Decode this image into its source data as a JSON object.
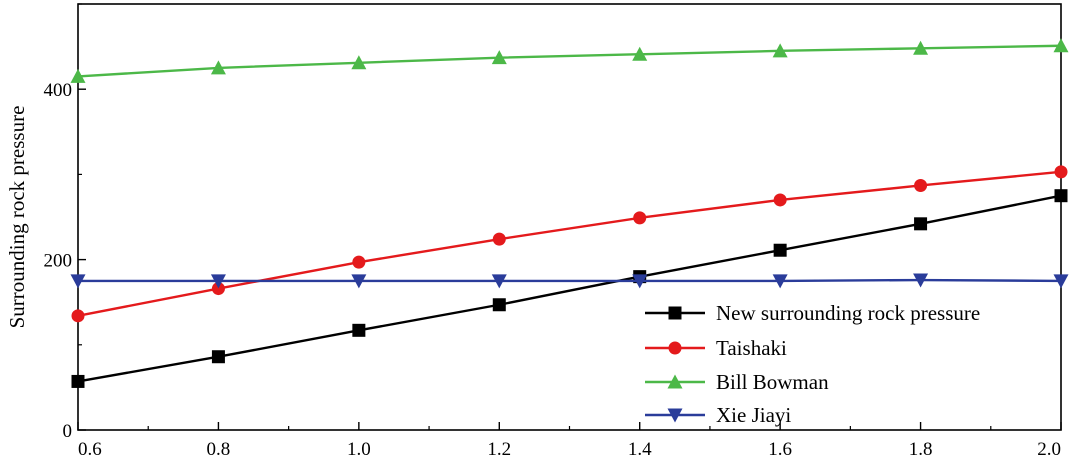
{
  "colors": {
    "series_1": "#000000",
    "series_2": "#e41a1c",
    "series_3": "#4cb848",
    "series_4": "#2a3c9a"
  },
  "chart_data": {
    "type": "line",
    "title": "",
    "xlabel": "",
    "ylabel": "Surrounding rock pressure",
    "xlim": [
      0.6,
      2.0
    ],
    "ylim": [
      0,
      500
    ],
    "x_ticks": [
      "0.6",
      "0.8",
      "1.0",
      "1.2",
      "1.4",
      "1.6",
      "1.8",
      "2.0"
    ],
    "y_ticks": [
      "0",
      "200",
      "400"
    ],
    "grid": false,
    "legend_position": "bottom-right",
    "x": [
      0.6,
      0.8,
      1.0,
      1.2,
      1.4,
      1.6,
      1.8,
      2.0
    ],
    "series": [
      {
        "name": "New surrounding rock pressure",
        "marker": "square",
        "color": "#000000",
        "values": [
          57,
          86,
          117,
          147,
          180,
          211,
          242,
          275
        ]
      },
      {
        "name": "Taishaki",
        "marker": "circle",
        "color": "#e41a1c",
        "values": [
          134,
          166,
          197,
          224,
          249,
          270,
          287,
          303
        ]
      },
      {
        "name": "Bill Bowman",
        "marker": "triangle-up",
        "color": "#4cb848",
        "values": [
          415,
          425,
          431,
          437,
          441,
          445,
          448,
          451
        ]
      },
      {
        "name": "Xie Jiayi",
        "marker": "triangle-down",
        "color": "#2a3c9a",
        "values": [
          175,
          175,
          175,
          175,
          175,
          175,
          176,
          175
        ]
      }
    ]
  }
}
